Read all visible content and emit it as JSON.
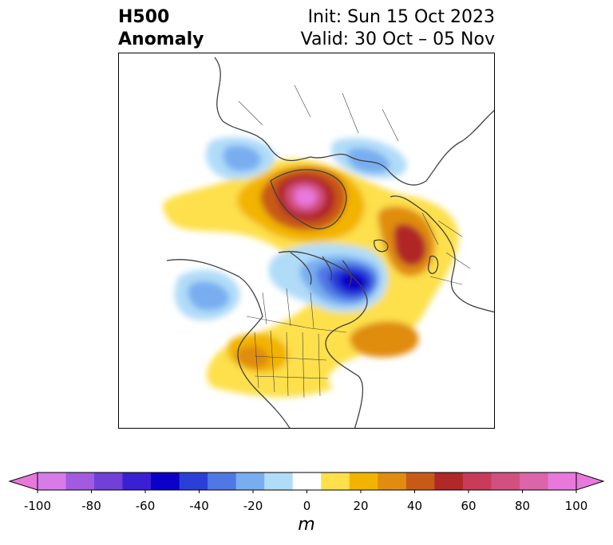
{
  "header": {
    "left_line1": "H500",
    "left_line2": "Anomaly",
    "right_line1": "Init: Sun 15 Oct 2023",
    "right_line2": "Valid: 30 Oct – 05 Nov"
  },
  "colorbar": {
    "ticks": [
      "-100",
      "-80",
      "-60",
      "-40",
      "-20",
      "0",
      "20",
      "40",
      "60",
      "80",
      "100"
    ],
    "unit": "m",
    "colors": [
      "#d67be8",
      "#a25ae0",
      "#7040d8",
      "#3a1fd4",
      "#0a00c8",
      "#2a3fd8",
      "#4f78e4",
      "#78aef0",
      "#b0dcf8",
      "#ffffff",
      "#fde04c",
      "#f2b400",
      "#e08c10",
      "#c85a18",
      "#b02828",
      "#c83c5a",
      "#d25080",
      "#dc64a8",
      "#e878dc"
    ],
    "range": [
      -100,
      100
    ],
    "extend": "both"
  }
}
